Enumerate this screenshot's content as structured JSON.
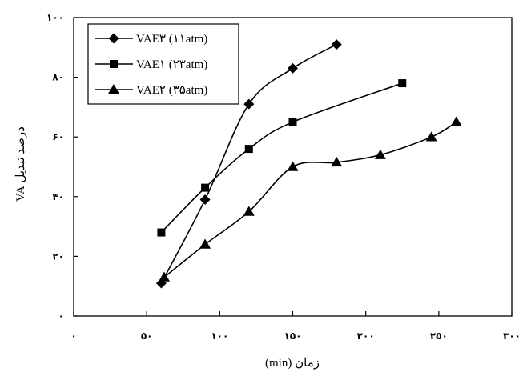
{
  "chart_data": {
    "type": "line",
    "xlabel": "زمان (min)",
    "ylabel": "درصد تبدیل VA",
    "xlim": [
      0,
      300
    ],
    "ylim": [
      0,
      100
    ],
    "x_ticks": [
      0,
      50,
      100,
      150,
      200,
      250,
      300
    ],
    "x_tick_labels": [
      "۰",
      "۵۰",
      "۱۰۰",
      "۱۵۰",
      "۲۰۰",
      "۲۵۰",
      "۳۰۰"
    ],
    "y_ticks": [
      0,
      20,
      40,
      60,
      80,
      100
    ],
    "y_tick_labels": [
      "۰",
      "۲۰",
      "۴۰",
      "۶۰",
      "۸۰",
      "۱۰۰"
    ],
    "grid": false,
    "legend_position": "top-left",
    "series": [
      {
        "name": "VAE۳ (۱۱atm)",
        "marker": "diamond",
        "x": [
          60,
          90,
          120,
          150,
          180
        ],
        "y": [
          11,
          39,
          71,
          83,
          91
        ]
      },
      {
        "name": "VAE۱ (۲۳atm)",
        "marker": "square",
        "x": [
          60,
          90,
          120,
          150,
          225
        ],
        "y": [
          28,
          43,
          56,
          65,
          78
        ]
      },
      {
        "name": "VAE۲ (۳۵atm)",
        "marker": "triangle",
        "x": [
          62,
          90,
          120,
          150,
          180,
          210,
          245,
          262
        ],
        "y": [
          13,
          24,
          35,
          50,
          51.5,
          54,
          60,
          65
        ]
      }
    ]
  }
}
